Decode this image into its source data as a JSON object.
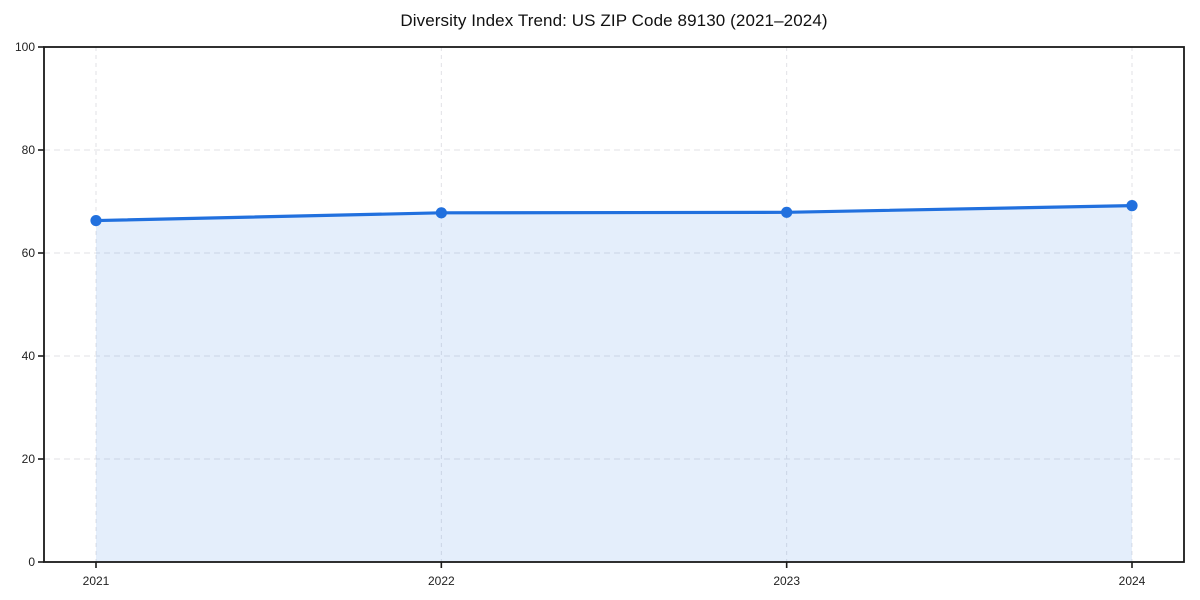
{
  "chart_data": {
    "type": "area",
    "title": "Diversity Index Trend: US ZIP Code 89130 (2021–2024)",
    "categories": [
      "2021",
      "2022",
      "2023",
      "2024"
    ],
    "values": [
      66.3,
      67.8,
      67.9,
      69.2
    ],
    "xlabel": "",
    "ylabel": "",
    "ylim": [
      0,
      100
    ],
    "yticks": [
      0,
      20,
      40,
      60,
      80,
      100
    ],
    "grid": true,
    "legend_position": "none",
    "colors": {
      "line": "#2170de",
      "marker": "#2170de",
      "fill": "rgba(33,112,222,0.12)",
      "gridline": "#e2e2e6",
      "axis": "#1a1a1a",
      "tick_label": "#222222",
      "title": "#111111",
      "background": "#ffffff"
    }
  }
}
